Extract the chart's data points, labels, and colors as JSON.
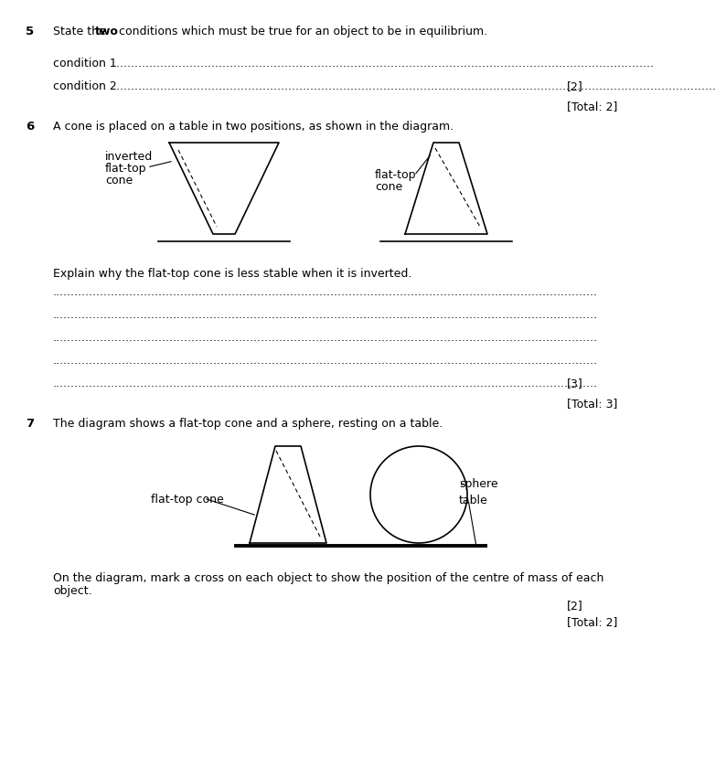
{
  "bg_color": "#ffffff",
  "text_color": "#000000",
  "q5_number": "5",
  "q5_text_rest": " conditions which must be true for an object to be in equilibrium.",
  "condition1_label": "condition 1",
  "condition2_label": "condition 2",
  "marks_2": "[2]",
  "total_2": "[Total: 2]",
  "q6_number": "6",
  "q6_text": "A cone is placed on a table in two positions, as shown in the diagram.",
  "inverted_label_line1": "inverted",
  "inverted_label_line2": "flat-top",
  "inverted_label_line3": "cone",
  "flattop_label_line1": "flat-top",
  "flattop_label_line2": "cone",
  "explain_text": "Explain why the flat-top cone is less stable when it is inverted.",
  "marks_3": "[3]",
  "total_3": "[Total: 3]",
  "q7_number": "7",
  "q7_text": "The diagram shows a flat-top cone and a sphere, resting on a table.",
  "flattop_cone_label": "flat-top cone",
  "sphere_label": "sphere",
  "table_label": "table",
  "on_diagram_text_line1": "On the diagram, mark a cross on each object to show the position of the centre of mass of each",
  "on_diagram_text_line2": "object.",
  "marks_2b": "[2]",
  "total_2b": "[Total: 2]",
  "dot_line_short": "......................................................................................................................................................................",
  "dot_line_long": "....................................................................................................................................................."
}
